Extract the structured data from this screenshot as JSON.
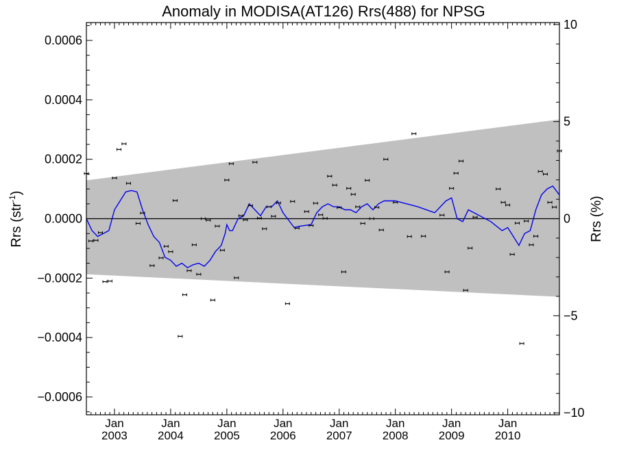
{
  "chart_data": {
    "type": "scatter",
    "title": "Anomaly in MODISA(AT126) Rrs(488) for NPSG",
    "ylabel_left_main": "Rrs (str",
    "ylabel_left_sup": "-1",
    "ylabel_left_end": ")",
    "ylabel_right": "Rrs (%)",
    "xlim": [
      2002.5,
      2010.92
    ],
    "ylim": [
      -0.00066,
      0.00066
    ],
    "ylim_right": [
      -10.1,
      10.1
    ],
    "yticks": [
      {
        "v": 0.0006,
        "label": "0.0006"
      },
      {
        "v": 0.0004,
        "label": "0.0004"
      },
      {
        "v": 0.0002,
        "label": "0.0002"
      },
      {
        "v": 0.0,
        "label": "0.0000"
      },
      {
        "v": -0.0002,
        "label": "−0.0002"
      },
      {
        "v": -0.0004,
        "label": "−0.0004"
      },
      {
        "v": -0.0006,
        "label": "−0.0006"
      }
    ],
    "yticks_right": [
      {
        "v": 10,
        "label": "10"
      },
      {
        "v": 5,
        "label": "5"
      },
      {
        "v": 0,
        "label": "0"
      },
      {
        "v": -5,
        "label": "−5"
      },
      {
        "v": -10,
        "label": "−10"
      }
    ],
    "xticks": [
      {
        "v": 2003.0,
        "month": "Jan",
        "year": "2003"
      },
      {
        "v": 2004.0,
        "month": "Jan",
        "year": "2004"
      },
      {
        "v": 2005.0,
        "month": "Jan",
        "year": "2005"
      },
      {
        "v": 2006.0,
        "month": "Jan",
        "year": "2006"
      },
      {
        "v": 2007.0,
        "month": "Jan",
        "year": "2007"
      },
      {
        "v": 2008.0,
        "month": "Jan",
        "year": "2008"
      },
      {
        "v": 2009.0,
        "month": "Jan",
        "year": "2009"
      },
      {
        "v": 2010.0,
        "month": "Jan",
        "year": "2010"
      }
    ],
    "band": {
      "x": [
        2002.5,
        2010.92
      ],
      "upper": [
        0.000129,
        0.000334
      ],
      "lower": [
        -0.000187,
        -0.000263
      ]
    },
    "colors": {
      "band": "#c0c0c0",
      "line": "#0000ee",
      "points": "#000000"
    },
    "series": [
      {
        "style": "line",
        "x": [
          2002.5,
          2002.6,
          2002.7,
          2002.8,
          2002.9,
          2003.0,
          2003.1,
          2003.2,
          2003.3,
          2003.4,
          2003.5,
          2003.6,
          2003.7,
          2003.8,
          2003.9,
          2004.0,
          2004.1,
          2004.2,
          2004.3,
          2004.4,
          2004.5,
          2004.6,
          2004.7,
          2004.8,
          2004.9,
          2004.97,
          2005.0,
          2005.05,
          2005.1,
          2005.2,
          2005.3,
          2005.4,
          2005.5,
          2005.6,
          2005.7,
          2005.8,
          2005.9,
          2006.0,
          2006.2,
          2006.3,
          2006.5,
          2006.6,
          2006.7,
          2006.8,
          2006.9,
          2007.0,
          2007.1,
          2007.2,
          2007.3,
          2007.4,
          2007.5,
          2007.6,
          2007.7,
          2007.8,
          2008.0,
          2008.4,
          2008.7,
          2008.8,
          2008.9,
          2009.0,
          2009.1,
          2009.2,
          2009.3,
          2009.7,
          2009.9,
          2010.0,
          2010.1,
          2010.2,
          2010.3,
          2010.4,
          2010.5,
          2010.6,
          2010.7,
          2010.8,
          2010.92
        ],
        "y": [
          0.0,
          -4e-05,
          -6e-05,
          -5e-05,
          -4e-05,
          3e-05,
          6e-05,
          9e-05,
          9.5e-05,
          9e-05,
          3e-05,
          -2e-05,
          -6e-05,
          -8e-05,
          -0.00013,
          -0.00014,
          -0.00016,
          -0.00015,
          -0.000165,
          -0.000155,
          -0.00015,
          -0.00016,
          -0.00014,
          -0.00011,
          -9e-05,
          -5e-05,
          -2e-05,
          -4e-05,
          -4e-05,
          0.0,
          1e-05,
          5e-05,
          3e-05,
          1e-05,
          4e-05,
          4e-05,
          6e-05,
          2e-05,
          -3e-05,
          -2.5e-05,
          -2e-05,
          2e-05,
          4e-05,
          5e-05,
          4e-05,
          4e-05,
          3e-05,
          3e-05,
          2e-05,
          4e-05,
          5e-05,
          3e-05,
          5e-05,
          6e-05,
          6e-05,
          4e-05,
          2e-05,
          4e-05,
          6e-05,
          7e-05,
          0.0,
          -1e-05,
          3e-05,
          -1e-05,
          -4e-05,
          -3e-05,
          -6e-05,
          -9e-05,
          -5e-05,
          -4e-05,
          3e-05,
          8e-05,
          0.0001,
          0.00011,
          8e-05
        ]
      },
      {
        "style": "points",
        "x": [
          2002.5,
          2002.58,
          2002.67,
          2002.75,
          2002.83,
          2002.92,
          2003.0,
          2003.08,
          2003.17,
          2003.25,
          2003.42,
          2003.5,
          2003.67,
          2003.83,
          2003.92,
          2004.0,
          2004.08,
          2004.17,
          2004.25,
          2004.33,
          2004.42,
          2004.5,
          2004.58,
          2004.67,
          2004.75,
          2004.83,
          2004.92,
          2005.0,
          2005.08,
          2005.17,
          2005.25,
          2005.33,
          2005.42,
          2005.5,
          2005.58,
          2005.67,
          2005.75,
          2005.83,
          2005.92,
          2006.08,
          2006.17,
          2006.25,
          2006.42,
          2006.5,
          2006.58,
          2006.67,
          2006.75,
          2006.83,
          2006.92,
          2007.0,
          2007.08,
          2007.17,
          2007.25,
          2007.33,
          2007.42,
          2007.5,
          2007.58,
          2007.67,
          2007.75,
          2007.83,
          2008.0,
          2008.25,
          2008.33,
          2008.5,
          2008.83,
          2008.92,
          2009.0,
          2009.08,
          2009.17,
          2009.25,
          2009.33,
          2009.42,
          2009.83,
          2009.92,
          2010.0,
          2010.08,
          2010.17,
          2010.25,
          2010.33,
          2010.42,
          2010.5,
          2010.58,
          2010.67,
          2010.75,
          2010.83,
          2010.92
        ],
        "y": [
          0.000152,
          -7.5e-05,
          -7.3e-05,
          -4.7e-05,
          -0.000212,
          -0.00021,
          0.000137,
          0.000233,
          0.000252,
          0.000119,
          -1.6e-05,
          1.9e-05,
          -0.000158,
          -0.000132,
          -9.3e-05,
          -0.000111,
          6.1e-05,
          -0.000396,
          -0.000256,
          -0.000175,
          -8.8e-05,
          -0.000187,
          0.0,
          -5e-06,
          -0.000274,
          -2.5e-05,
          -0.000106,
          0.00013,
          0.000185,
          -0.000199,
          1e-05,
          -4e-06,
          4.4e-05,
          0.00019,
          2e-06,
          -3.4e-05,
          4e-05,
          8e-06,
          5.3e-05,
          -0.000286,
          5.8e-05,
          -3.2e-05,
          2.4e-05,
          -2.3e-05,
          5.2e-05,
          1.3e-05,
          1e-06,
          0.000143,
          0.000113,
          3.7e-05,
          -0.000179,
          0.000102,
          8.2e-05,
          4e-05,
          -1.6e-05,
          0.000129,
          0.0,
          3.8e-05,
          -3.8e-05,
          0.0002,
          5.5e-05,
          -6e-05,
          0.000286,
          -5.9e-05,
          1.2e-05,
          -0.000179,
          0.000102,
          0.000153,
          0.000194,
          -0.000241,
          -9.9e-05,
          5e-06,
          0.0001,
          5.5e-05,
          4.6e-05,
          -0.00012,
          -1.5e-05,
          -0.00042,
          -8e-06,
          -8.8e-05,
          -5.9e-05,
          0.000159,
          0.00015,
          5.5e-05,
          3.9e-05,
          0.000228
        ]
      }
    ]
  }
}
